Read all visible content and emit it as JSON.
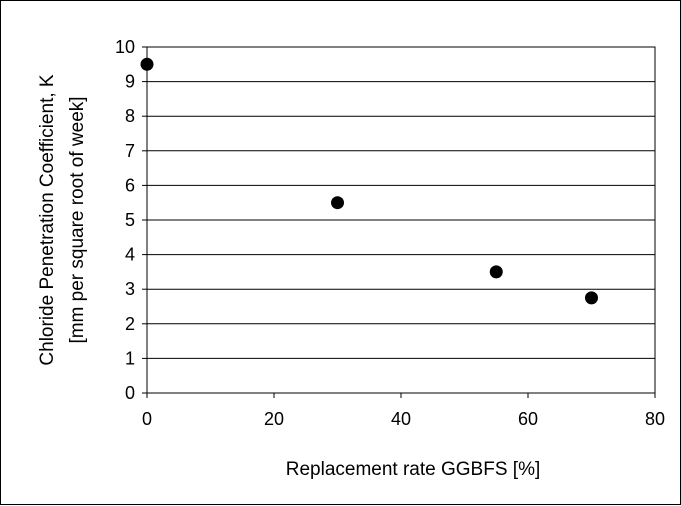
{
  "chart_data": {
    "type": "scatter",
    "title": "",
    "xlabel": "Replacement rate GGBFS [%]",
    "ylabel_line1": "Chloride Penetration Coefficient, K",
    "ylabel_line2": "[mm per square root of week]",
    "xlim": [
      0,
      80
    ],
    "ylim": [
      0,
      10
    ],
    "x_ticks": [
      "0",
      "20",
      "40",
      "60",
      "80"
    ],
    "y_ticks": [
      "0",
      "1",
      "2",
      "3",
      "4",
      "5",
      "6",
      "7",
      "8",
      "9",
      "10"
    ],
    "grid": "horizontal",
    "legend": "none",
    "marker_color": "#000000",
    "gridline_color": "#000000",
    "points": [
      {
        "x": 0,
        "y": 9.5
      },
      {
        "x": 30,
        "y": 5.5
      },
      {
        "x": 55,
        "y": 3.5
      },
      {
        "x": 70,
        "y": 2.75
      }
    ]
  }
}
